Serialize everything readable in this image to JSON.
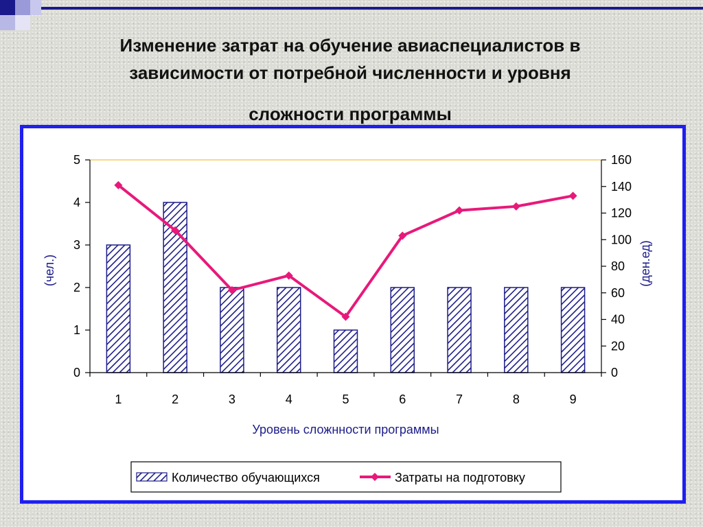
{
  "title": {
    "line1": "Изменение затрат на обучение авиаспециалистов в",
    "line2": "зависимости от  потребной численности и  уровня",
    "line3": "сложности программы"
  },
  "chart_data": {
    "type": "bar",
    "categories": [
      "1",
      "2",
      "3",
      "4",
      "5",
      "6",
      "7",
      "8",
      "9"
    ],
    "xlabel": "Уровень сложнности программы",
    "ylabel_left": "(чел.)",
    "ylabel_right": "(ден.ед)",
    "ylim_left": [
      0,
      5
    ],
    "ylim_right": [
      0,
      160
    ],
    "yticks_left": [
      "0",
      "1",
      "2",
      "3",
      "4",
      "5"
    ],
    "yticks_right": [
      "0",
      "20",
      "40",
      "60",
      "80",
      "100",
      "120",
      "140",
      "160"
    ],
    "legend_position": "bottom",
    "series": [
      {
        "name": "Количество обучающихся",
        "type": "bar",
        "axis": "left",
        "values": [
          3,
          4,
          2,
          2,
          1,
          2,
          2,
          2,
          2
        ],
        "color": "#1c1c8a"
      },
      {
        "name": "Затраты на подготовку",
        "type": "line",
        "axis": "right",
        "values": [
          141,
          107,
          62,
          73,
          42,
          103,
          122,
          125,
          133
        ],
        "color": "#e8197a"
      }
    ]
  },
  "colors": {
    "frame_border": "#1f1ff0",
    "bar_hatch": "#1c1c8a",
    "line": "#e8197a",
    "top_gridline": "#f0c040"
  }
}
